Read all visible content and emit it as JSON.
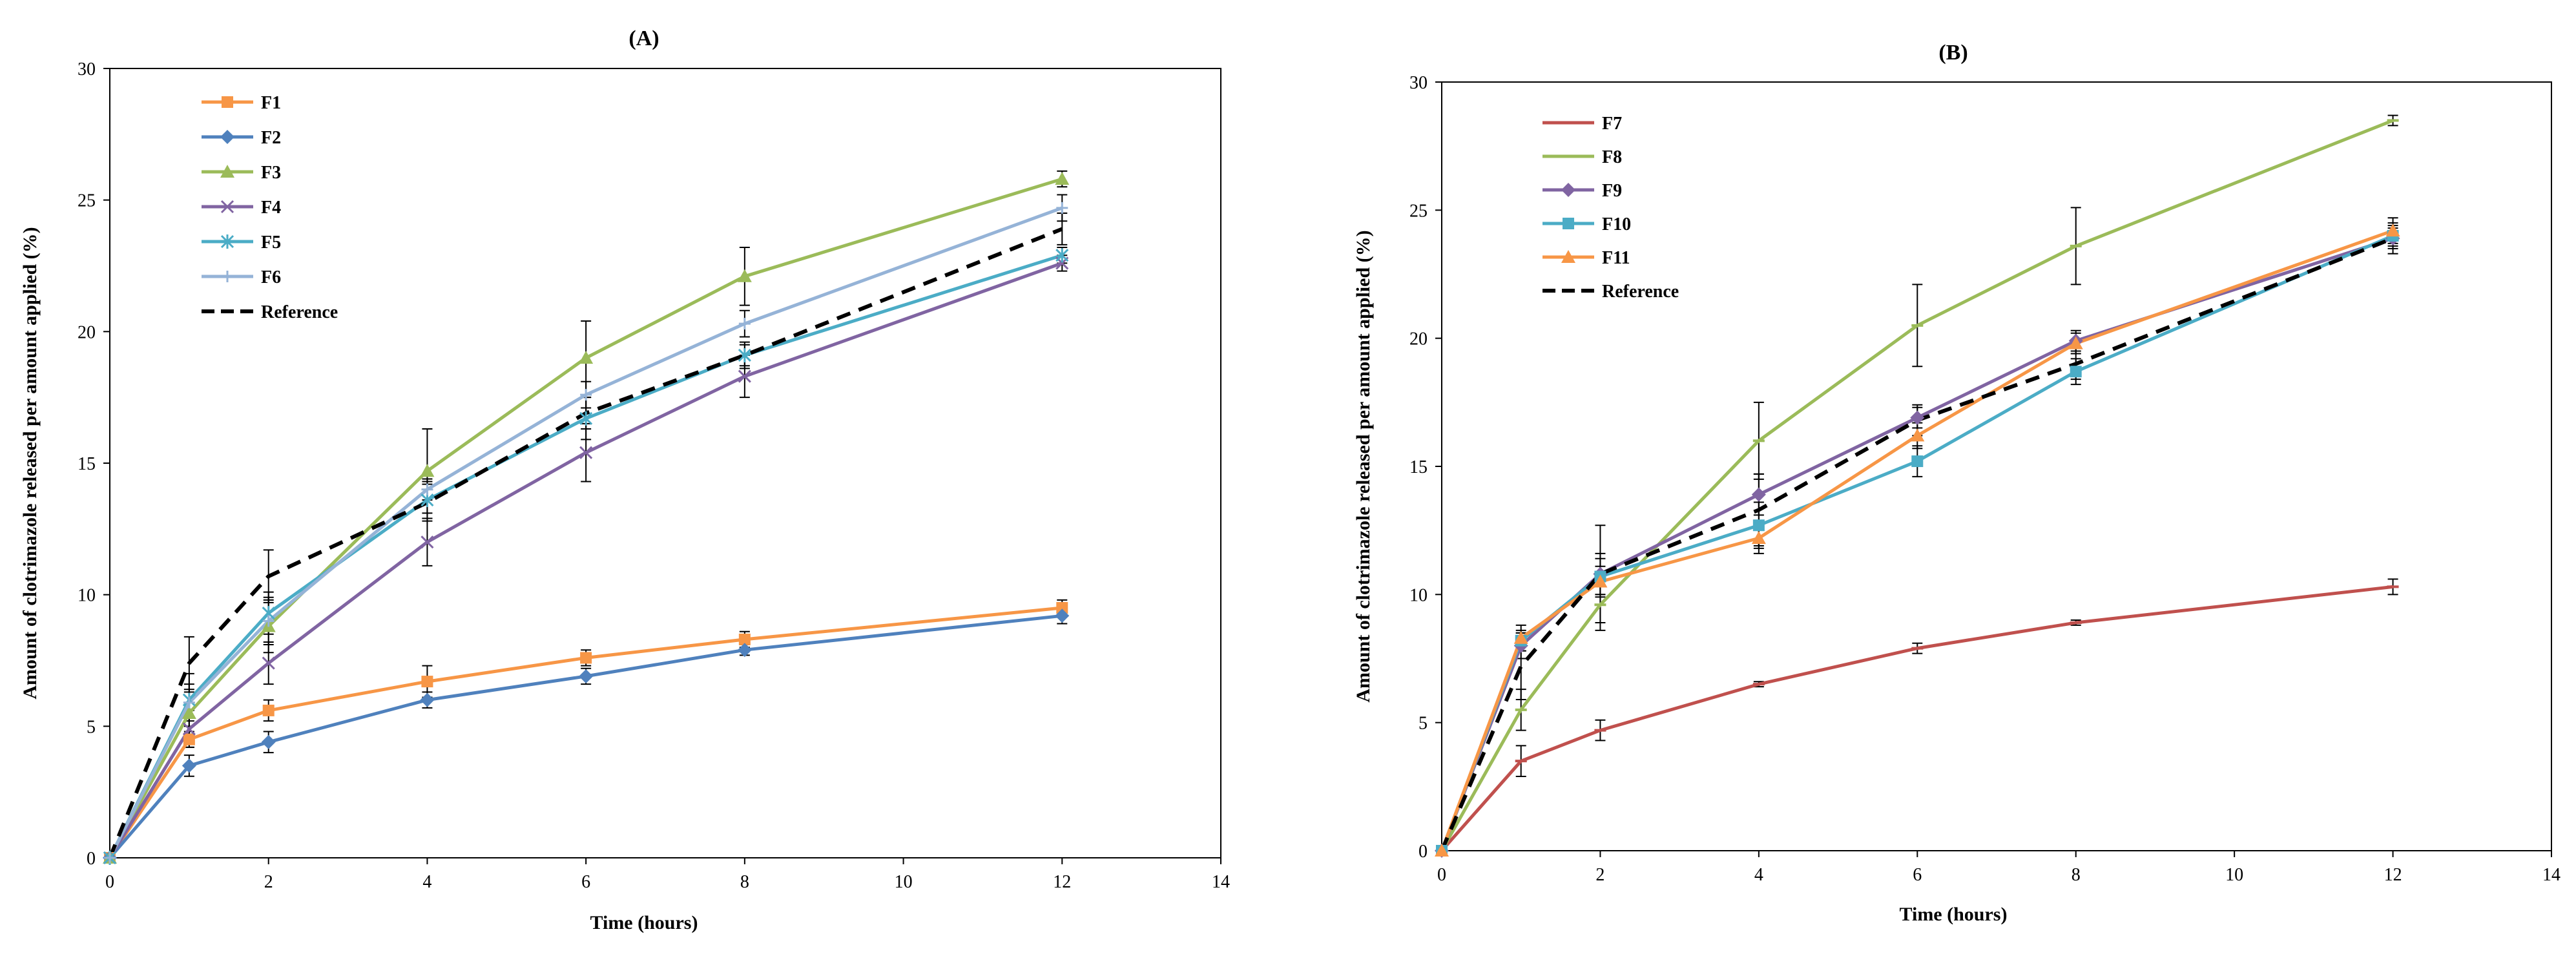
{
  "chart_data": [
    {
      "type": "line",
      "title": "(A)",
      "xlabel": "Time (hours)",
      "ylabel": "Amount of clotrimazole released per amount applied (%)",
      "xlim": [
        0,
        14
      ],
      "ylim": [
        0,
        30
      ],
      "xticks": [
        0,
        2,
        4,
        6,
        8,
        10,
        12,
        14
      ],
      "yticks": [
        0,
        5,
        10,
        15,
        20,
        25,
        30
      ],
      "grid": false,
      "legend": "top-left",
      "x": [
        0,
        1,
        2,
        4,
        6,
        8,
        12
      ],
      "series": [
        {
          "name": "F1",
          "color": "#f79646",
          "marker": "square",
          "dash": false,
          "values": [
            0,
            4.5,
            5.6,
            6.7,
            7.6,
            8.3,
            9.5
          ],
          "err": [
            0,
            0.3,
            0.4,
            0.6,
            0.3,
            0.3,
            0.3
          ]
        },
        {
          "name": "F2",
          "color": "#4f81bd",
          "marker": "diamond",
          "dash": false,
          "values": [
            0,
            3.5,
            4.4,
            6.0,
            6.9,
            7.9,
            9.2
          ],
          "err": [
            0,
            0.4,
            0.4,
            0.3,
            0.3,
            0.2,
            0.3
          ]
        },
        {
          "name": "F3",
          "color": "#9bbb59",
          "marker": "triangle",
          "dash": false,
          "values": [
            0,
            5.5,
            8.8,
            14.7,
            19.0,
            22.1,
            25.8
          ],
          "err": [
            0,
            0.8,
            1.0,
            1.6,
            1.4,
            1.1,
            0.3
          ]
        },
        {
          "name": "F4",
          "color": "#8064a2",
          "marker": "x",
          "dash": false,
          "values": [
            0,
            4.9,
            7.4,
            12.0,
            15.4,
            18.3,
            22.6
          ],
          "err": [
            0,
            0.7,
            0.8,
            0.9,
            1.1,
            0.8,
            0.3
          ]
        },
        {
          "name": "F5",
          "color": "#4bacc6",
          "marker": "star",
          "dash": false,
          "values": [
            0,
            6.0,
            9.3,
            13.6,
            16.7,
            19.1,
            22.9
          ],
          "err": [
            0,
            1.0,
            0.8,
            0.7,
            0.8,
            0.5,
            0.3
          ]
        },
        {
          "name": "F6",
          "color": "#95b3d7",
          "marker": "plus",
          "dash": false,
          "values": [
            0,
            5.9,
            9.0,
            14.0,
            17.6,
            20.3,
            24.7
          ],
          "err": [
            0,
            0.7,
            0.9,
            0.4,
            0.5,
            0.5,
            0.5
          ]
        },
        {
          "name": "Reference",
          "color": "#000000",
          "marker": "none",
          "dash": true,
          "values": [
            0,
            7.4,
            10.7,
            13.5,
            16.9,
            19.1,
            23.9
          ],
          "err": [
            0,
            1.0,
            1.0,
            0.7,
            0.6,
            0.4,
            0.6
          ]
        }
      ]
    },
    {
      "type": "line",
      "title": "(B)",
      "xlabel": "Time (hours)",
      "ylabel": "Amount of clotrimazole released per amount applied (%)",
      "xlim": [
        0,
        14
      ],
      "ylim": [
        0,
        30
      ],
      "xticks": [
        0,
        2,
        4,
        6,
        8,
        10,
        12,
        14
      ],
      "yticks": [
        0,
        5,
        10,
        15,
        20,
        25,
        30
      ],
      "grid": false,
      "legend": "top-left",
      "x": [
        0,
        1,
        2,
        4,
        6,
        8,
        12
      ],
      "series": [
        {
          "name": "F7",
          "color": "#c0504d",
          "marker": "dash",
          "dash": false,
          "values": [
            0,
            3.5,
            4.7,
            6.5,
            7.9,
            8.9,
            10.3
          ],
          "err": [
            0,
            0.6,
            0.4,
            0.1,
            0.2,
            0.1,
            0.3
          ]
        },
        {
          "name": "F8",
          "color": "#9bbb59",
          "marker": "dash",
          "dash": false,
          "values": [
            0,
            5.5,
            9.6,
            16.0,
            20.5,
            23.6,
            28.5
          ],
          "err": [
            0,
            0.8,
            1.0,
            1.5,
            1.6,
            1.5,
            0.2
          ]
        },
        {
          "name": "F9",
          "color": "#8064a2",
          "marker": "diamond",
          "dash": false,
          "values": [
            0,
            8.0,
            10.8,
            13.9,
            16.9,
            19.9,
            23.9
          ],
          "err": [
            0,
            0.5,
            0.8,
            0.8,
            0.4,
            0.4,
            0.4
          ]
        },
        {
          "name": "F10",
          "color": "#4bacc6",
          "marker": "square",
          "dash": false,
          "values": [
            0,
            8.2,
            10.7,
            12.7,
            15.2,
            18.7,
            24.0
          ],
          "err": [
            0,
            0.4,
            0.7,
            0.9,
            0.6,
            0.5,
            0.4
          ]
        },
        {
          "name": "F11",
          "color": "#f79646",
          "marker": "triangle",
          "dash": false,
          "values": [
            0,
            8.3,
            10.5,
            12.2,
            16.2,
            19.8,
            24.2
          ],
          "err": [
            0,
            0.5,
            0.6,
            0.6,
            0.5,
            0.4,
            0.5
          ]
        },
        {
          "name": "Reference",
          "color": "#000000",
          "marker": "none",
          "dash": true,
          "values": [
            0,
            7.2,
            10.8,
            13.3,
            16.8,
            19.0,
            23.9
          ],
          "err": [
            0,
            1.3,
            1.9,
            1.4,
            0.6,
            0.6,
            0.6
          ]
        }
      ]
    }
  ]
}
